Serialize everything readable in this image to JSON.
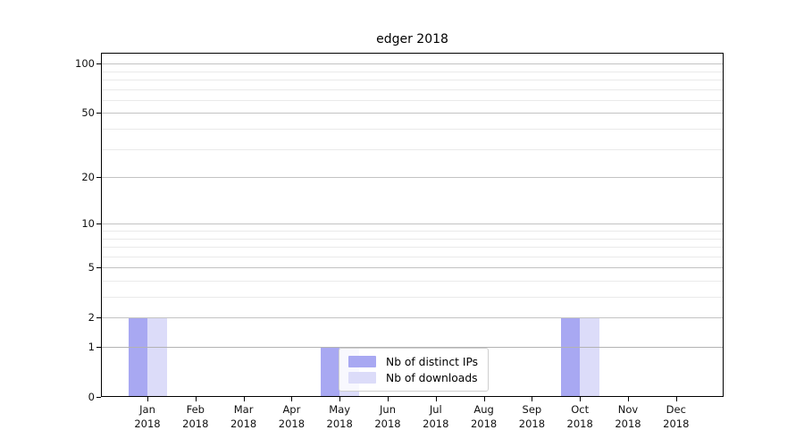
{
  "title": "edger 2018",
  "chart_data": {
    "type": "bar",
    "title": "edger 2018",
    "categories": [
      "Jan 2018",
      "Feb 2018",
      "Mar 2018",
      "Apr 2018",
      "May 2018",
      "Jun 2018",
      "Jul 2018",
      "Aug 2018",
      "Sep 2018",
      "Oct 2018",
      "Nov 2018",
      "Dec 2018"
    ],
    "month_labels": [
      "Jan",
      "Feb",
      "Mar",
      "Apr",
      "May",
      "Jun",
      "Jul",
      "Aug",
      "Sep",
      "Oct",
      "Nov",
      "Dec"
    ],
    "year_label": "2018",
    "series": [
      {
        "name": "Nb of distinct IPs",
        "color": "#a8a8f2",
        "values": [
          2,
          0,
          0,
          0,
          1,
          0,
          0,
          0,
          0,
          2,
          0,
          0
        ]
      },
      {
        "name": "Nb of downloads",
        "color": "#dcdcf9",
        "values": [
          2,
          0,
          0,
          0,
          1,
          0,
          0,
          0,
          0,
          2,
          0,
          0
        ]
      }
    ],
    "xlabel": "",
    "ylabel": "",
    "yscale": "log1p (symlog-like: position ~ log10(1+y))",
    "ylim": [
      0,
      117
    ],
    "y_major_ticks": [
      0,
      1,
      2,
      5,
      10,
      20,
      50,
      100
    ],
    "y_major_tick_labels": [
      "0",
      "1",
      "2",
      "5",
      "10",
      "20",
      "50",
      "100"
    ],
    "y_minor_ticks": [
      3,
      4,
      6,
      7,
      8,
      9,
      30,
      40,
      60,
      70,
      80,
      90
    ],
    "grid": true,
    "legend": {
      "position": "lower center (inside plot, overlapping May bars)",
      "entries": [
        "Nb of distinct IPs",
        "Nb of downloads"
      ]
    },
    "colors": {
      "bar_distinct_ips": "#a8a8f2",
      "bar_downloads": "#dcdcf9",
      "gridline_major": "#c3c3c3",
      "gridline_minor": "#eaeaea",
      "spine": "#000000"
    }
  }
}
